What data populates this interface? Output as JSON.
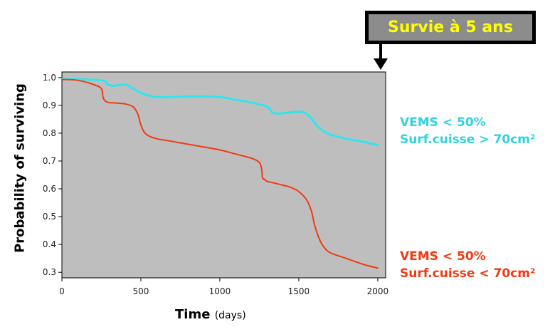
{
  "callout": {
    "text": "Survie à 5 ans"
  },
  "legend": {
    "cyan": {
      "line1": "VEMS < 50%",
      "line2": "Surf.cuisse > 70cm²"
    },
    "red": {
      "line1": "VEMS < 50%",
      "line2": "Surf.cuisse < 70cm²"
    }
  },
  "chart_data": {
    "type": "line",
    "xlabel": "Time",
    "xlabel_unit": "(days)",
    "ylabel": "Probability of surviving",
    "xlim": [
      0,
      2050
    ],
    "ylim": [
      0.28,
      1.02
    ],
    "xticks": [
      0,
      500,
      1000,
      1500,
      2000
    ],
    "yticks": [
      1.0,
      0.9,
      0.8,
      0.7,
      0.6,
      0.5,
      0.4,
      0.3
    ],
    "ytick_labels": [
      "1.0",
      "0.9",
      "0.8",
      "0.7",
      "0.6",
      "0.5",
      "0.4",
      "0.3"
    ],
    "grid": false,
    "plot_background": "#bebebe",
    "series": [
      {
        "name": "VEMS < 50% Surf.cuisse > 70cm²",
        "color": "#2fe6ef",
        "x": [
          0,
          250,
          290,
          330,
          400,
          450,
          500,
          550,
          600,
          700,
          800,
          900,
          1000,
          1100,
          1200,
          1300,
          1330,
          1360,
          1400,
          1450,
          1500,
          1530,
          1570,
          1610,
          1650,
          1700,
          1800,
          1900,
          2000
        ],
        "y": [
          0.995,
          0.99,
          0.975,
          0.97,
          0.975,
          0.96,
          0.945,
          0.935,
          0.93,
          0.93,
          0.932,
          0.932,
          0.93,
          0.92,
          0.91,
          0.895,
          0.875,
          0.87,
          0.872,
          0.875,
          0.877,
          0.875,
          0.86,
          0.83,
          0.81,
          0.795,
          0.78,
          0.77,
          0.757
        ]
      },
      {
        "name": "VEMS < 50% Surf.cuisse < 70cm²",
        "color": "#f23a12",
        "x": [
          0,
          100,
          200,
          250,
          260,
          275,
          300,
          350,
          400,
          450,
          480,
          500,
          520,
          550,
          600,
          700,
          800,
          900,
          1000,
          1100,
          1200,
          1250,
          1265,
          1270,
          1280,
          1300,
          1350,
          1400,
          1450,
          1500,
          1550,
          1580,
          1600,
          1630,
          1660,
          1700,
          1800,
          1900,
          2000
        ],
        "y": [
          0.993,
          0.99,
          0.975,
          0.96,
          0.93,
          0.915,
          0.91,
          0.908,
          0.905,
          0.895,
          0.87,
          0.83,
          0.805,
          0.79,
          0.78,
          0.77,
          0.76,
          0.75,
          0.74,
          0.725,
          0.71,
          0.695,
          0.67,
          0.64,
          0.635,
          0.627,
          0.62,
          0.613,
          0.605,
          0.59,
          0.56,
          0.52,
          0.47,
          0.42,
          0.39,
          0.37,
          0.35,
          0.33,
          0.315
        ]
      }
    ]
  }
}
